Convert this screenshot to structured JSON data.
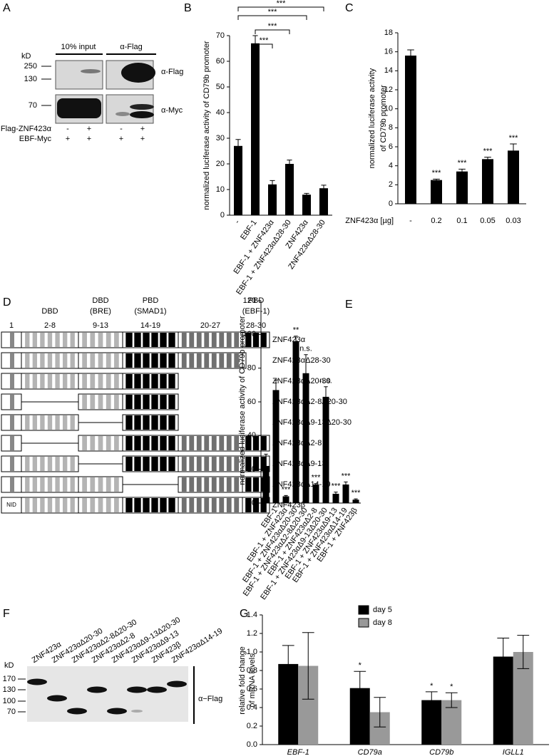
{
  "panel_a": {
    "label": "A",
    "mw_label": "kD",
    "lane_headers": [
      "10% input",
      "α-Flag"
    ],
    "markers": [
      "250",
      "130",
      "70"
    ],
    "blot_labels": [
      "α-Flag",
      "α-Myc"
    ],
    "rows": [
      {
        "label": "Flag-ZNF423α",
        "signs": [
          "-",
          "+",
          "-",
          "+"
        ]
      },
      {
        "label": "EBF-Myc",
        "signs": [
          "+",
          "+",
          "+",
          "+"
        ]
      }
    ]
  },
  "panel_d": {
    "label": "D",
    "domain_labels": [
      [
        "DBD"
      ],
      [
        "DBD",
        "(BRE)"
      ],
      [
        "PBD",
        "(SMAD1)"
      ],
      [
        "PBD",
        "(EBF-1)"
      ]
    ],
    "finger_ranges": [
      "1",
      "2-8",
      "9-13",
      "14-19",
      "20-27",
      "28-30"
    ],
    "nid": "NID",
    "constructs": [
      "ZNF423α",
      "ZNF423αΔ28-30",
      "ZNF423αΔ20-30",
      "ZNF423αΔ2-8Δ20-30",
      "ZNF423αΔ9-13Δ20-30",
      "ZNF423αΔ2-8",
      "ZNF423αΔ9-13",
      "ZNF423αΔ14-19",
      "ZNF423β"
    ]
  },
  "panel_f": {
    "label": "F",
    "mw_label": "kD",
    "markers": [
      "170",
      "130",
      "100",
      "70"
    ],
    "blot_label": "α−Flag",
    "lanes": [
      "ZNF423α",
      "ZNF423αΔ20-30",
      "ZNF423αΔ2-8Δ20-30",
      "ZNF423αΔ2-8",
      "ZNF423αΔ9-13Δ20-30",
      "ZNF423αΔ9-13",
      "ZNF423β",
      "ZNF423αΔ14-19"
    ]
  },
  "chart_data": [
    {
      "type": "bar",
      "panel": "B",
      "y_label": "normalized luciferase activity of CD79b promoter",
      "categories": [
        "-",
        "EBF-1",
        "EBF-1 + ZNF423α",
        "EBF-1 + ZNF423αΔ28-30",
        "ZNF423α",
        "ZNF423αΔ28-30"
      ],
      "values": [
        27,
        67,
        12,
        20,
        8,
        10.5
      ],
      "errors": [
        2.5,
        3,
        1.5,
        1.5,
        0.5,
        1.2
      ],
      "color": "#000000",
      "significance": [
        "***",
        "***",
        "***",
        "***"
      ],
      "ylim": [
        0,
        70
      ],
      "yticks": [
        0,
        10,
        20,
        30,
        40,
        50,
        60,
        70
      ]
    },
    {
      "type": "bar",
      "panel": "C",
      "y_label": [
        "normalized luciferase activity",
        "of CD79b promoter"
      ],
      "x_label": "ZNF423α [µg]",
      "categories": [
        "-",
        "0.2",
        "0.1",
        "0.05",
        "0.03"
      ],
      "values": [
        15.6,
        2.5,
        3.4,
        4.7,
        5.6
      ],
      "errors": [
        0.6,
        0.1,
        0.25,
        0.2,
        0.7
      ],
      "color": "#000000",
      "annotations": [
        null,
        "***",
        "***",
        "***",
        "***"
      ],
      "ylim": [
        0,
        18
      ],
      "yticks": [
        0,
        2,
        4,
        6,
        8,
        10,
        12,
        14,
        16,
        18
      ]
    },
    {
      "type": "bar",
      "panel": "E",
      "y_label": "normalized luciferase activity of CD79b promoter",
      "categories": [
        "-",
        "EBF-1",
        "EBF-1 + ZNF423α",
        "EBF-1 + ZNF423αΔ20-30",
        "EBF-1 + ZNF423αΔ2-8Δ20-30",
        "EBF-1 + ZNF423αΔ2-8",
        "EBF-1 + ZNF423αΔ9-13Δ20-30",
        "EBF-1 + ZNF423αΔ9-13",
        "EBF-1 + ZNF423αΔ14-19",
        "EBF-1 + ZNF423β"
      ],
      "values": [
        22,
        67,
        4,
        96,
        77,
        11,
        63,
        5.5,
        11,
        2
      ],
      "errors": [
        7,
        6,
        0.5,
        3,
        11,
        0.5,
        6,
        1,
        1.5,
        0.5
      ],
      "color": "#000000",
      "annotations": [
        null,
        null,
        "***",
        "**",
        "n.s.",
        "***",
        "n.s.",
        "***",
        "***",
        "***"
      ],
      "ylim": [
        0,
        120
      ],
      "yticks": [
        0,
        20,
        40,
        60,
        80,
        100,
        120
      ]
    },
    {
      "type": "bar",
      "panel": "G",
      "y_label": [
        "relative fold change",
        "of mRNA levels"
      ],
      "categories": [
        "EBF-1",
        "CD79a",
        "CD79b",
        "IGLL1"
      ],
      "series": [
        {
          "name": "day 5",
          "color": "#000000",
          "values": [
            0.87,
            0.61,
            0.48,
            0.95
          ],
          "errors": [
            0.2,
            0.18,
            0.09,
            0.2
          ],
          "annotations": [
            null,
            "*",
            "*",
            null
          ]
        },
        {
          "name": "day 8",
          "color": "#999999",
          "values": [
            0.85,
            0.35,
            0.48,
            1.0
          ],
          "errors": [
            0.36,
            0.16,
            0.08,
            0.18
          ],
          "annotations": [
            null,
            null,
            "*",
            null
          ]
        }
      ],
      "ylim": [
        0,
        1.4
      ],
      "yticks": [
        {
          "value": 0,
          "label": "0.0"
        },
        0.2,
        0.4,
        0.6,
        0.8,
        {
          "value": 1,
          "label": "1.0"
        },
        1.2,
        1.4
      ]
    }
  ]
}
